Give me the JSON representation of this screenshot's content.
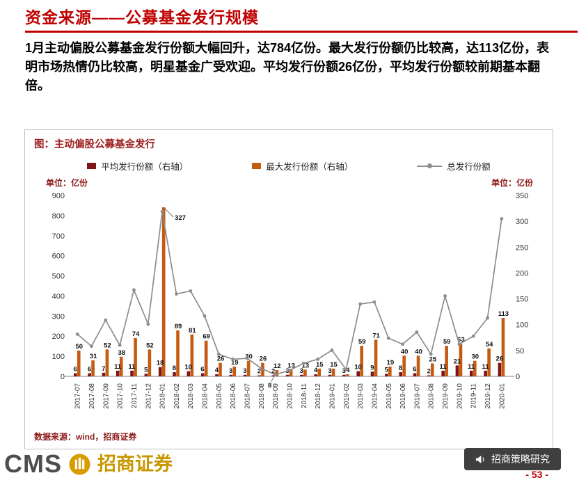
{
  "page": {
    "title": "资金来源——公募基金发行规模",
    "body_text": "1月主动偏股公募基金发行份额大幅回升，达784亿份。最大发行份额仍比较高，达113亿份，表明市场热情仍比较高，明星基金广受欢迎。平均发行份额26亿份，平均发行份额较前期基本翻倍。",
    "page_number": "- 53 -"
  },
  "chart_panel": {
    "title": "图：主动偏股公募基金发行",
    "unit_left": "单位：亿份",
    "unit_right": "单位：亿份",
    "source": "数据来源：wind，招商证券"
  },
  "footer": {
    "logo_cms": "CMS",
    "logo_name": "招商证券",
    "badge": "招商策略研究"
  },
  "colors": {
    "accent_red": "#c00000",
    "dark_red_text": "#8e1a1a",
    "bar_avg": "#7f1517",
    "bar_max": "#c55a11",
    "line_total": "#8c8c8c",
    "logo_gold": "#c99700",
    "badge_bg": "#3f3f3f"
  },
  "chart_data": {
    "type": "bar",
    "subtype": "dual-axis grouped bars + line",
    "title": "主动偏股公募基金发行",
    "categories": [
      "2017-07",
      "2017-08",
      "2017-09",
      "2017-10",
      "2017-11",
      "2017-12",
      "2018-01",
      "2018-02",
      "2018-03",
      "2018-04",
      "2018-05",
      "2018-06",
      "2018-07",
      "2018-08",
      "2018-09",
      "2018-10",
      "2018-11",
      "2018-12",
      "2019-01",
      "2019-02",
      "2019-03",
      "2019-04",
      "2019-05",
      "2019-06",
      "2019-07",
      "2019-08",
      "2019-09",
      "2019-10",
      "2019-11",
      "2019-12",
      "2020-01"
    ],
    "series": [
      {
        "name": "平均发行份额（右轴）",
        "type": "bar",
        "axis": "right",
        "color": "#7f1517",
        "values": [
          6,
          6,
          7,
          11,
          11,
          5,
          18,
          8,
          10,
          6,
          4,
          3,
          3,
          2,
          2,
          3,
          3,
          4,
          3,
          3,
          10,
          9,
          5,
          8,
          6,
          2,
          11,
          21,
          11,
          11,
          26
        ]
      },
      {
        "name": "最大发行份额（右轴）",
        "type": "bar",
        "axis": "right",
        "color": "#c55a11",
        "values": [
          50,
          31,
          52,
          38,
          74,
          52,
          327,
          89,
          81,
          69,
          26,
          19,
          30,
          26,
          12,
          13,
          13,
          15,
          15,
          4,
          59,
          71,
          19,
          40,
          40,
          25,
          59,
          63,
          30,
          54,
          113
        ]
      },
      {
        "name": "总发行份额",
        "type": "line",
        "axis": "left",
        "color": "#8c8c8c",
        "values": [
          210,
          150,
          280,
          155,
          430,
          260,
          820,
          410,
          425,
          300,
          110,
          85,
          90,
          40,
          8,
          30,
          65,
          85,
          130,
          35,
          360,
          370,
          190,
          160,
          220,
          110,
          400,
          160,
          200,
          290,
          784
        ]
      }
    ],
    "left_axis": {
      "min": 0,
      "max": 900,
      "step": 100,
      "unit": "亿份"
    },
    "right_axis": {
      "min": 0,
      "max": 350,
      "step": 50,
      "unit": "亿份"
    },
    "legend_position": "top",
    "grid": false,
    "annotations": [
      {
        "series": "最大发行份额（右轴）",
        "category": "2018-01",
        "text": "327",
        "note": "callout with leader line at bar top"
      },
      {
        "series": "总发行份额",
        "category": "2018-09",
        "text": "8",
        "note": "callout below axis with leader line"
      }
    ]
  }
}
